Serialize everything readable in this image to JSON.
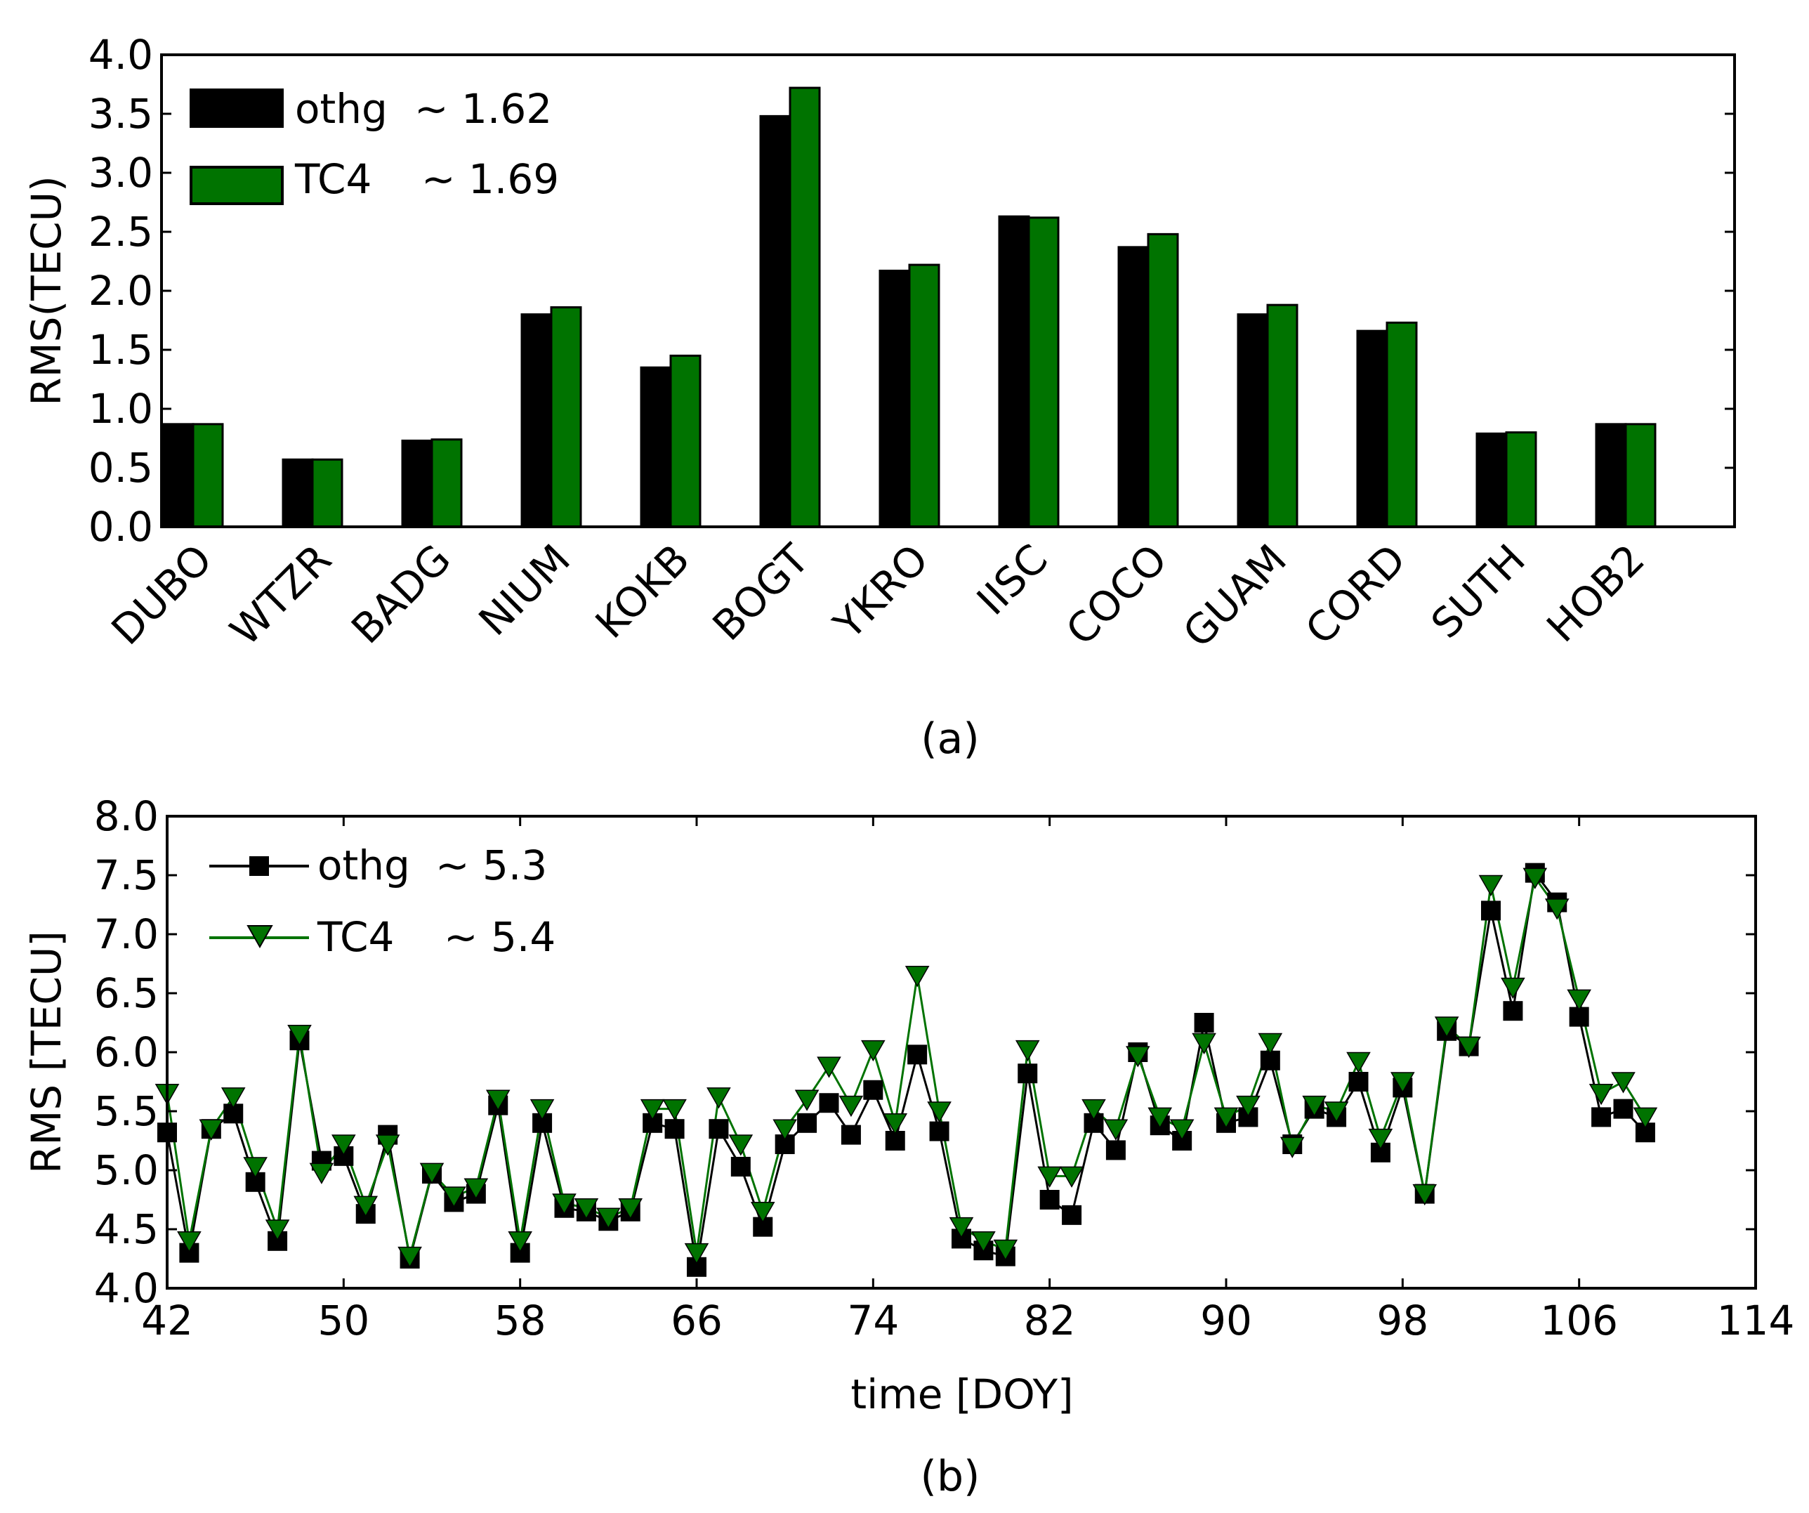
{
  "chart_data": [
    {
      "type": "bar",
      "caption": "(a)",
      "ylabel": "RMS(TECU)",
      "xlabel": "",
      "ylim": [
        0,
        4.0
      ],
      "yticks": [
        "0.0",
        "0.5",
        "1.0",
        "1.5",
        "2.0",
        "2.5",
        "3.0",
        "3.5",
        "4.0"
      ],
      "categories": [
        "DUBO",
        "WTZR",
        "BADG",
        "NIUM",
        "KOKB",
        "BOGT",
        "YKRO",
        "IISC",
        "COCO",
        "GUAM",
        "CORD",
        "SUTH",
        "HOB2"
      ],
      "series": [
        {
          "name": "othg",
          "legend_label": "othg",
          "legend_value": "~ 1.62",
          "color": "#000000",
          "values": [
            0.87,
            0.57,
            0.73,
            1.8,
            1.35,
            3.48,
            2.17,
            2.63,
            2.37,
            1.8,
            1.66,
            0.79,
            0.87
          ]
        },
        {
          "name": "TC4",
          "legend_label": "TC4",
          "legend_value": "~ 1.69",
          "color": "#007300",
          "values": [
            0.87,
            0.57,
            0.74,
            1.86,
            1.45,
            3.72,
            2.22,
            2.62,
            2.48,
            1.88,
            1.73,
            0.8,
            0.87
          ]
        }
      ],
      "legend_position": "top-left"
    },
    {
      "type": "line",
      "caption": "(b)",
      "ylabel": "RMS [TECU]",
      "xlabel": "time [DOY]",
      "xlim": [
        42,
        114
      ],
      "ylim": [
        4.0,
        8.0
      ],
      "xticks": [
        "42",
        "50",
        "58",
        "66",
        "74",
        "82",
        "90",
        "98",
        "106",
        "114"
      ],
      "yticks": [
        "4.0",
        "4.5",
        "5.0",
        "5.5",
        "6.0",
        "6.5",
        "7.0",
        "7.5",
        "8.0"
      ],
      "x": [
        42,
        43,
        44,
        45,
        46,
        47,
        48,
        49,
        50,
        51,
        52,
        53,
        54,
        55,
        56,
        57,
        58,
        59,
        60,
        61,
        62,
        63,
        64,
        65,
        66,
        67,
        68,
        69,
        70,
        71,
        72,
        73,
        74,
        75,
        76,
        77,
        78,
        79,
        80,
        81,
        82,
        83,
        84,
        85,
        86,
        87,
        88,
        89,
        90,
        91,
        92,
        93,
        94,
        95,
        96,
        97,
        98,
        99,
        100,
        101,
        102,
        103,
        104,
        105,
        106,
        107,
        108,
        109
      ],
      "series": [
        {
          "name": "othg",
          "legend_label": "othg",
          "legend_value": "~ 5.3",
          "color": "#000000",
          "marker": "square",
          "values": [
            5.32,
            4.3,
            5.35,
            5.48,
            4.9,
            4.4,
            6.1,
            5.08,
            5.12,
            4.63,
            5.3,
            4.25,
            4.97,
            4.73,
            4.8,
            5.55,
            4.3,
            5.4,
            4.68,
            4.65,
            4.57,
            4.65,
            5.4,
            5.35,
            4.18,
            5.35,
            5.03,
            4.52,
            5.22,
            5.4,
            5.57,
            5.3,
            5.68,
            5.25,
            5.98,
            5.33,
            4.42,
            4.32,
            4.27,
            5.82,
            4.75,
            4.62,
            5.4,
            5.17,
            6.0,
            5.38,
            5.25,
            6.25,
            5.4,
            5.45,
            5.93,
            5.22,
            5.52,
            5.45,
            5.75,
            5.15,
            5.7,
            4.8,
            6.18,
            6.05,
            7.2,
            6.35,
            7.52,
            7.27,
            6.3,
            5.45,
            5.52,
            5.32
          ]
        },
        {
          "name": "TC4",
          "legend_label": "TC4",
          "legend_value": "~ 5.4",
          "color": "#007300",
          "marker": "triangle-down",
          "values": [
            5.65,
            4.4,
            5.35,
            5.62,
            5.03,
            4.5,
            6.15,
            4.98,
            5.22,
            4.7,
            5.22,
            4.27,
            4.98,
            4.78,
            4.85,
            5.6,
            4.4,
            5.52,
            4.72,
            4.68,
            4.6,
            4.68,
            5.52,
            5.52,
            4.3,
            5.62,
            5.22,
            4.65,
            5.35,
            5.6,
            5.88,
            5.55,
            6.02,
            5.4,
            6.65,
            5.5,
            4.52,
            4.4,
            4.33,
            6.02,
            4.95,
            4.95,
            5.52,
            5.35,
            5.97,
            5.45,
            5.35,
            6.08,
            5.45,
            5.55,
            6.08,
            5.2,
            5.55,
            5.5,
            5.92,
            5.27,
            5.75,
            4.8,
            6.22,
            6.05,
            7.42,
            6.55,
            7.48,
            7.22,
            6.45,
            5.65,
            5.75,
            5.45
          ]
        }
      ],
      "legend_position": "top-left"
    }
  ]
}
